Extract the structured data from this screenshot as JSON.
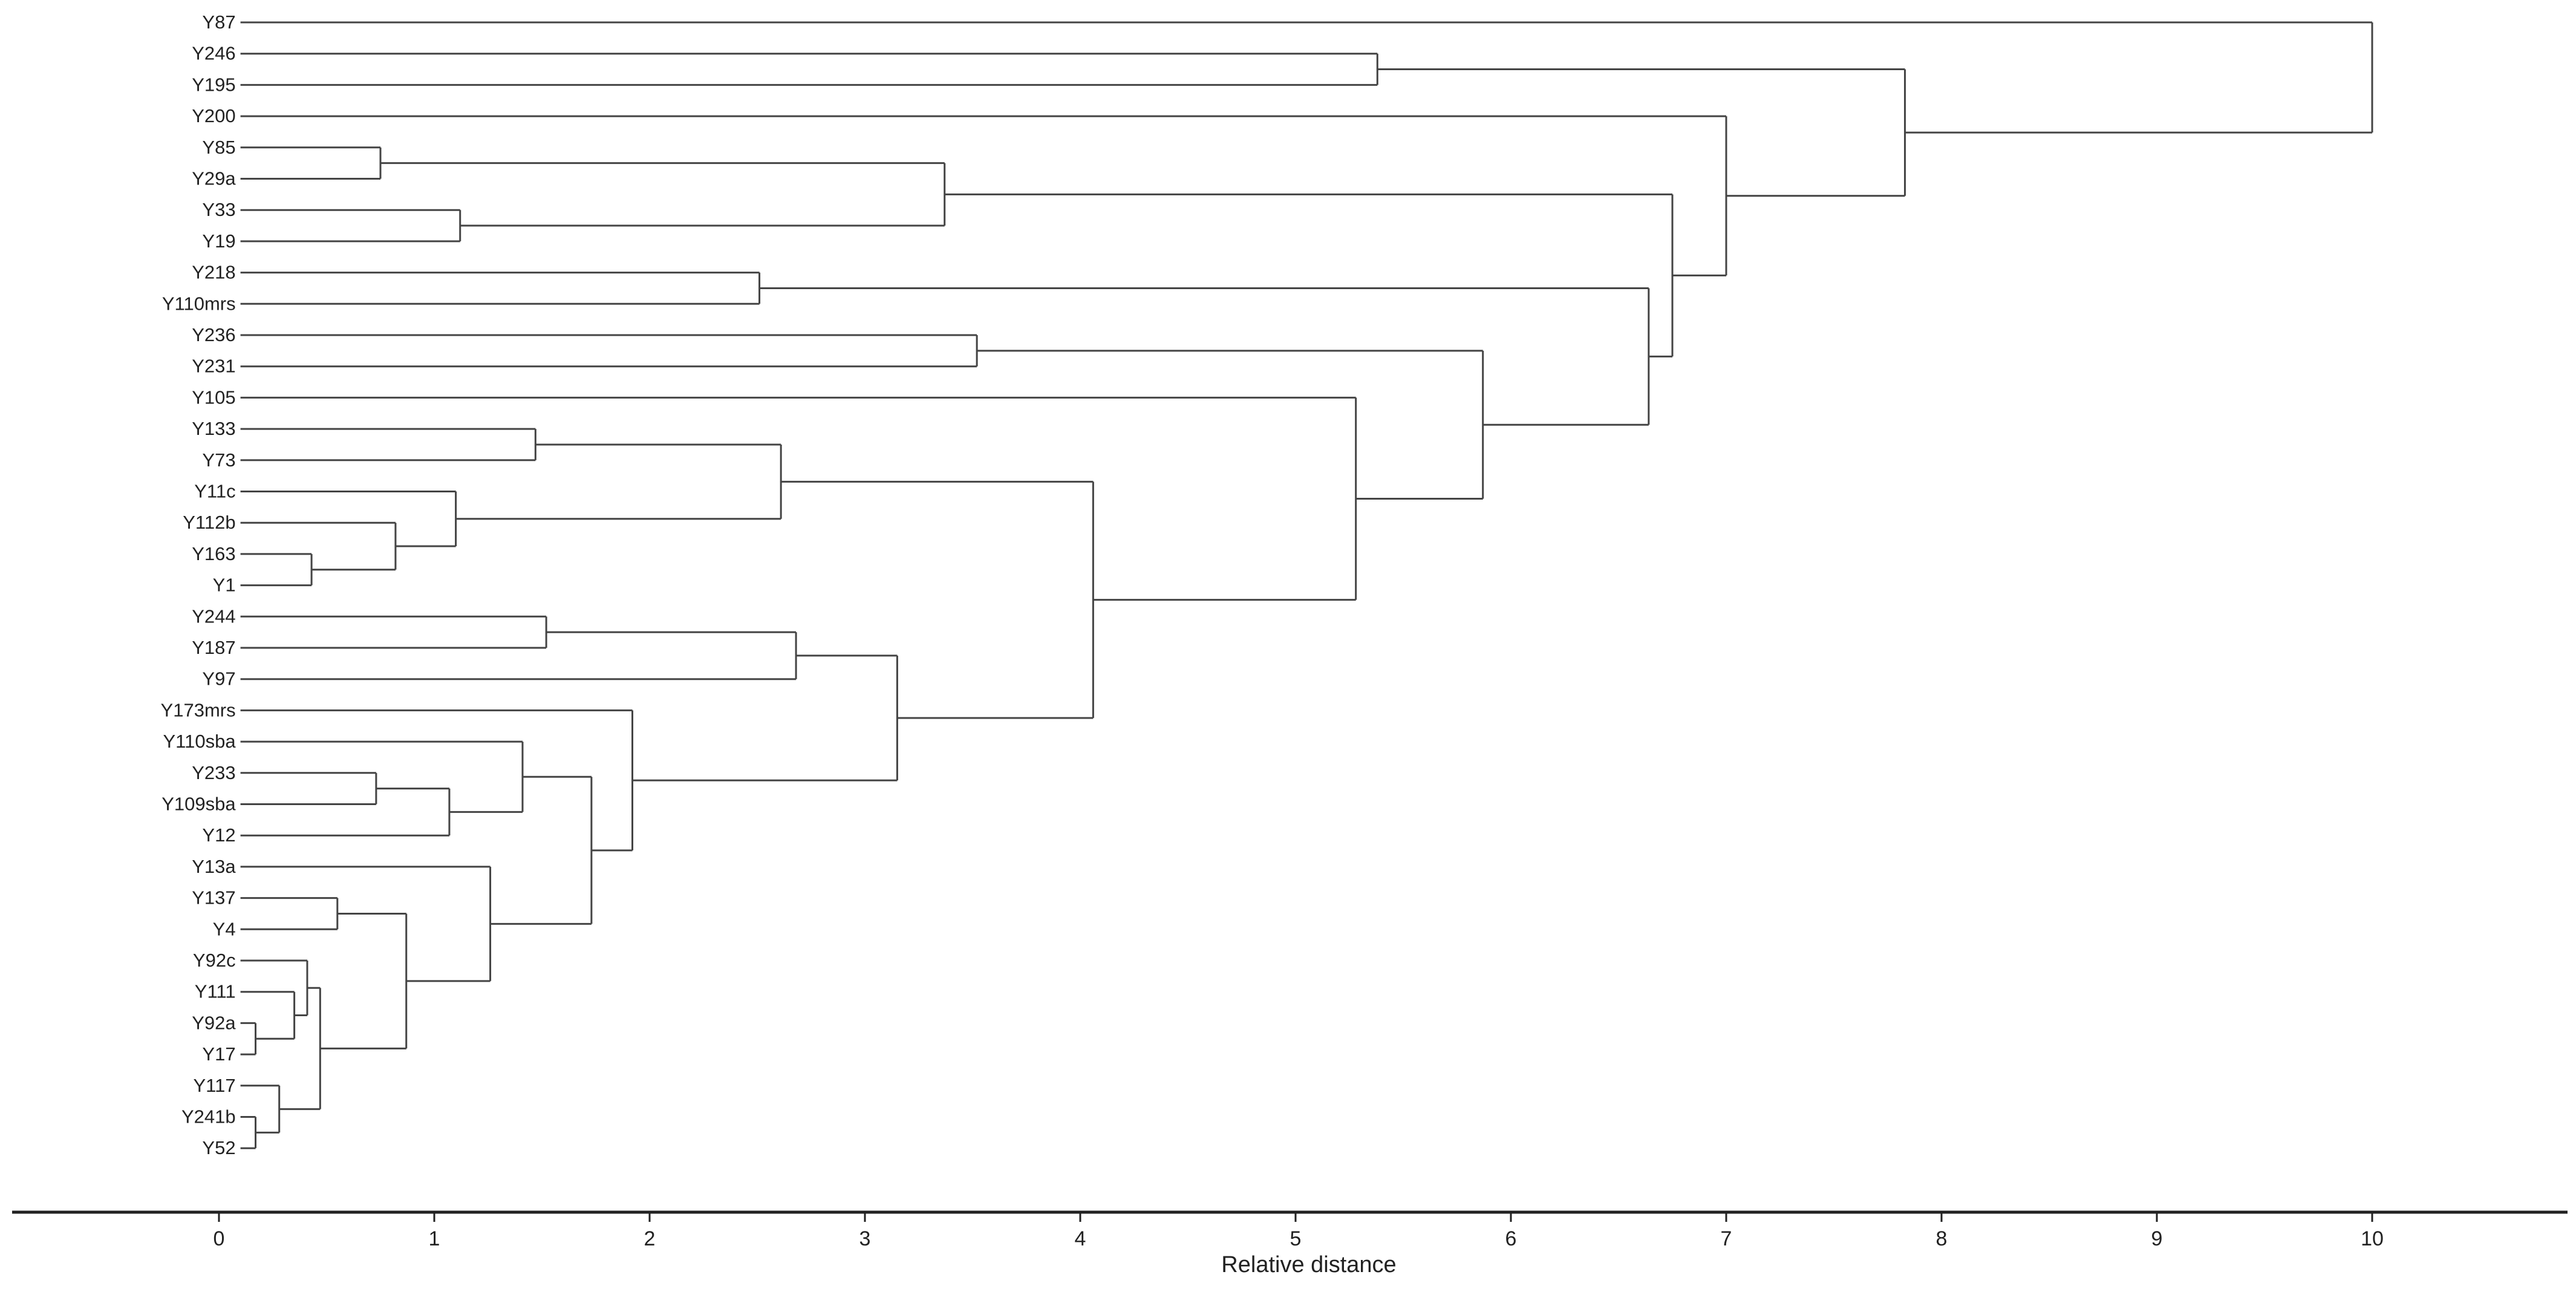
{
  "chart_data": {
    "type": "dendrogram",
    "orientation": "horizontal",
    "xlabel": "Relative distance",
    "xlim": [
      -1,
      10.9
    ],
    "xticks": [
      0,
      1,
      2,
      3,
      4,
      5,
      6,
      7,
      8,
      9,
      10
    ],
    "leaves": [
      "Y87",
      "Y246",
      "Y195",
      "Y200",
      "Y85",
      "Y29a",
      "Y33",
      "Y19",
      "Y218",
      "Y110mrs",
      "Y236",
      "Y231",
      "Y105",
      "Y133",
      "Y73",
      "Y11c",
      "Y112b",
      "Y163",
      "Y1",
      "Y244",
      "Y187",
      "Y97",
      "Y173mrs",
      "Y110sba",
      "Y233",
      "Y109sba",
      "Y12",
      "Y13a",
      "Y137",
      "Y4",
      "Y92c",
      "Y111",
      "Y92a",
      "Y17",
      "Y117",
      "Y241b",
      "Y52"
    ],
    "merges": [
      {
        "id": "n1",
        "left": "Y92a",
        "right": "Y17",
        "height": 0.17
      },
      {
        "id": "n2",
        "left": "Y241b",
        "right": "Y52",
        "height": 0.17
      },
      {
        "id": "n3",
        "left": "Y117",
        "right": "n2",
        "height": 0.28
      },
      {
        "id": "n4",
        "left": "Y111",
        "right": "n1",
        "height": 0.35
      },
      {
        "id": "n5",
        "left": "Y92c",
        "right": "n4",
        "height": 0.41
      },
      {
        "id": "n6",
        "left": "Y163",
        "right": "Y1",
        "height": 0.43
      },
      {
        "id": "n7",
        "left": "n5",
        "right": "n3",
        "height": 0.47
      },
      {
        "id": "n8",
        "left": "Y137",
        "right": "Y4",
        "height": 0.55
      },
      {
        "id": "n9",
        "left": "Y233",
        "right": "Y109sba",
        "height": 0.73
      },
      {
        "id": "n10",
        "left": "Y85",
        "right": "Y29a",
        "height": 0.75
      },
      {
        "id": "n11",
        "left": "Y112b",
        "right": "n6",
        "height": 0.82
      },
      {
        "id": "n12",
        "left": "n8",
        "right": "n7",
        "height": 0.87
      },
      {
        "id": "n13",
        "left": "n9",
        "right": "Y12",
        "height": 1.07
      },
      {
        "id": "n14",
        "left": "Y11c",
        "right": "n11",
        "height": 1.1
      },
      {
        "id": "n15",
        "left": "Y33",
        "right": "Y19",
        "height": 1.12
      },
      {
        "id": "n16",
        "left": "Y13a",
        "right": "n12",
        "height": 1.26
      },
      {
        "id": "n17",
        "left": "Y110sba",
        "right": "n13",
        "height": 1.41
      },
      {
        "id": "n18",
        "left": "Y133",
        "right": "Y73",
        "height": 1.47
      },
      {
        "id": "n19",
        "left": "Y244",
        "right": "Y187",
        "height": 1.52
      },
      {
        "id": "n20",
        "left": "n17",
        "right": "n16",
        "height": 1.73
      },
      {
        "id": "n21",
        "left": "Y173mrs",
        "right": "n20",
        "height": 1.92
      },
      {
        "id": "n22",
        "left": "Y218",
        "right": "Y110mrs",
        "height": 2.51
      },
      {
        "id": "n23",
        "left": "n18",
        "right": "n14",
        "height": 2.61
      },
      {
        "id": "n24",
        "left": "n19",
        "right": "Y97",
        "height": 2.68
      },
      {
        "id": "n25",
        "left": "n24",
        "right": "n21",
        "height": 3.15
      },
      {
        "id": "n26",
        "left": "n10",
        "right": "n15",
        "height": 3.37
      },
      {
        "id": "n27",
        "left": "Y236",
        "right": "Y231",
        "height": 3.52
      },
      {
        "id": "n28",
        "left": "n23",
        "right": "n25",
        "height": 4.06
      },
      {
        "id": "n29",
        "left": "Y105",
        "right": "n28",
        "height": 5.28
      },
      {
        "id": "n30",
        "left": "Y246",
        "right": "Y195",
        "height": 5.38
      },
      {
        "id": "n31",
        "left": "n27",
        "right": "n29",
        "height": 5.87
      },
      {
        "id": "n32",
        "left": "n22",
        "right": "n31",
        "height": 6.64
      },
      {
        "id": "n33",
        "left": "n26",
        "right": "n32",
        "height": 6.75
      },
      {
        "id": "n34",
        "left": "Y200",
        "right": "n33",
        "height": 7.0
      },
      {
        "id": "n35",
        "left": "n30",
        "right": "n34",
        "height": 7.83
      },
      {
        "id": "n36",
        "left": "Y87",
        "right": "n35",
        "height": 10.0
      }
    ]
  }
}
